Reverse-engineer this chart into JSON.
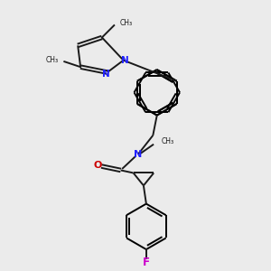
{
  "bg_color": "#ebebeb",
  "bond_color": "#1a1a1a",
  "N_color": "#2020ff",
  "O_color": "#cc0000",
  "F_color": "#cc00cc",
  "lw": 1.4,
  "dbo": 0.06,
  "xlim": [
    0,
    10
  ],
  "ylim": [
    0,
    10
  ]
}
